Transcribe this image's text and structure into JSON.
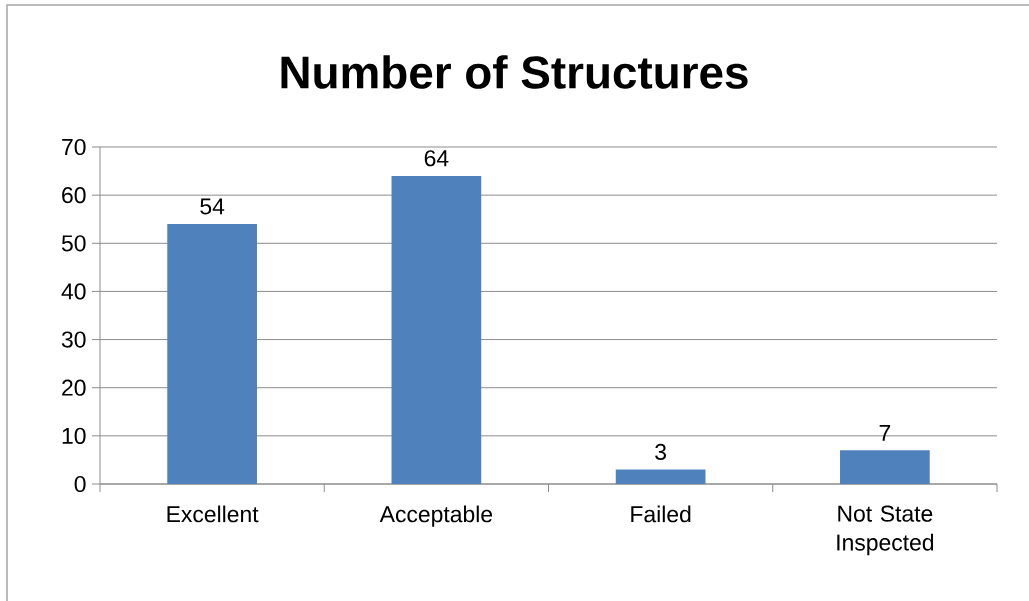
{
  "chart_data": {
    "type": "bar",
    "title": "Number of Structures",
    "categories": [
      "Excellent",
      "Acceptable",
      "Failed",
      "Not State Inspected"
    ],
    "values": [
      54,
      64,
      3,
      7
    ],
    "color": "#4f81bd",
    "ylim": [
      0,
      70
    ],
    "yticks": [
      0,
      10,
      20,
      30,
      40,
      50,
      60,
      70
    ],
    "grid": "y",
    "data_labels": true
  }
}
